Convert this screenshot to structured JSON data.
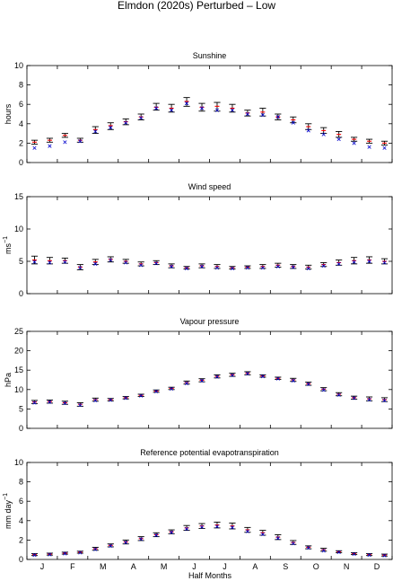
{
  "figure": {
    "title": "Elmdon (2020s) Perturbed – Low",
    "xlabel": "Half Months",
    "month_labels": [
      "J",
      "F",
      "M",
      "A",
      "M",
      "J",
      "J",
      "A",
      "S",
      "O",
      "N",
      "D"
    ],
    "colors": {
      "bar": "#000000",
      "mean": "#ff0000",
      "obs": "#0000cc",
      "frame": "#000000"
    }
  },
  "chart_data": [
    {
      "type": "errorbar",
      "title": "Sunshine",
      "ylabel": "hours",
      "ylabel_sup": "",
      "ylim": [
        0,
        10
      ],
      "yticks": [
        0,
        2,
        4,
        6,
        8,
        10
      ],
      "x": [
        1,
        2,
        3,
        4,
        5,
        6,
        7,
        8,
        9,
        10,
        11,
        12,
        13,
        14,
        15,
        16,
        17,
        18,
        19,
        20,
        21,
        22,
        23,
        24
      ],
      "mean": [
        2.1,
        2.3,
        2.8,
        2.3,
        3.4,
        3.8,
        4.2,
        4.7,
        5.7,
        5.6,
        6.3,
        5.7,
        5.8,
        5.6,
        5.1,
        5.2,
        4.7,
        4.4,
        3.7,
        3.3,
        2.9,
        2.4,
        2.2,
        2.0
      ],
      "lower": [
        1.9,
        2.1,
        2.6,
        2.1,
        3.0,
        3.4,
        3.9,
        4.4,
        5.4,
        5.2,
        5.8,
        5.3,
        5.3,
        5.2,
        4.8,
        4.8,
        4.4,
        4.1,
        3.4,
        3.0,
        2.6,
        2.2,
        2.0,
        1.8
      ],
      "upper": [
        2.3,
        2.5,
        3.0,
        2.5,
        3.7,
        4.1,
        4.5,
        5.0,
        6.1,
        6.0,
        6.7,
        6.1,
        6.2,
        6.0,
        5.4,
        5.6,
        5.0,
        4.7,
        4.0,
        3.6,
        3.2,
        2.6,
        2.4,
        2.2
      ],
      "observed": [
        1.5,
        1.7,
        2.1,
        2.2,
        3.2,
        3.6,
        4.1,
        4.6,
        5.6,
        5.4,
        6.1,
        5.6,
        5.4,
        5.4,
        5.0,
        4.9,
        4.7,
        4.1,
        3.3,
        2.9,
        2.4,
        2.0,
        1.6,
        1.5
      ]
    },
    {
      "type": "errorbar",
      "title": "Wind speed",
      "ylabel": "ms",
      "ylabel_sup": "−1",
      "ylim": [
        0,
        15
      ],
      "yticks": [
        0,
        5,
        10,
        15
      ],
      "x": [
        1,
        2,
        3,
        4,
        5,
        6,
        7,
        8,
        9,
        10,
        11,
        12,
        13,
        14,
        15,
        16,
        17,
        18,
        19,
        20,
        21,
        22,
        23,
        24
      ],
      "mean": [
        5.2,
        5.1,
        5.1,
        4.1,
        4.9,
        5.3,
        5.0,
        4.6,
        4.8,
        4.3,
        4.0,
        4.3,
        4.2,
        4.0,
        4.1,
        4.2,
        4.4,
        4.2,
        4.1,
        4.5,
        4.8,
        5.1,
        5.2,
        5.0
      ],
      "lower": [
        4.6,
        4.6,
        4.7,
        3.7,
        4.5,
        4.9,
        4.7,
        4.3,
        4.5,
        4.0,
        3.8,
        4.0,
        3.9,
        3.8,
        3.9,
        3.9,
        4.1,
        3.9,
        3.8,
        4.2,
        4.4,
        4.6,
        4.7,
        4.6
      ],
      "upper": [
        5.8,
        5.6,
        5.5,
        4.5,
        5.3,
        5.7,
        5.3,
        4.9,
        5.1,
        4.6,
        4.2,
        4.6,
        4.5,
        4.2,
        4.3,
        4.5,
        4.7,
        4.5,
        4.4,
        4.8,
        5.2,
        5.6,
        5.7,
        5.4
      ],
      "observed": [
        4.9,
        4.8,
        4.9,
        4.0,
        4.6,
        5.2,
        4.8,
        4.4,
        4.7,
        4.2,
        3.9,
        4.2,
        4.0,
        3.9,
        4.0,
        4.0,
        4.2,
        4.1,
        3.9,
        4.3,
        4.6,
        4.9,
        5.0,
        4.8
      ]
    },
    {
      "type": "errorbar",
      "title": "Vapour pressure",
      "ylabel": "hPa",
      "ylabel_sup": "",
      "ylim": [
        0,
        25
      ],
      "yticks": [
        0,
        5,
        10,
        15,
        20,
        25
      ],
      "x": [
        1,
        2,
        3,
        4,
        5,
        6,
        7,
        8,
        9,
        10,
        11,
        12,
        13,
        14,
        15,
        16,
        17,
        18,
        19,
        20,
        21,
        22,
        23,
        24
      ],
      "mean": [
        6.8,
        6.9,
        6.6,
        6.2,
        7.4,
        7.4,
        7.9,
        8.5,
        9.6,
        10.3,
        11.8,
        12.4,
        13.4,
        13.8,
        14.2,
        13.5,
        12.9,
        12.5,
        11.5,
        10.1,
        8.8,
        7.9,
        7.6,
        7.4
      ],
      "lower": [
        6.4,
        6.5,
        6.2,
        5.7,
        7.0,
        7.1,
        7.6,
        8.2,
        9.3,
        10.0,
        11.4,
        12.0,
        13.0,
        13.4,
        13.8,
        13.2,
        12.6,
        12.1,
        11.1,
        9.7,
        8.4,
        7.5,
        7.1,
        6.9
      ],
      "upper": [
        7.2,
        7.3,
        7.0,
        6.6,
        7.8,
        7.7,
        8.2,
        8.8,
        9.9,
        10.6,
        12.2,
        12.8,
        13.8,
        14.2,
        14.6,
        13.8,
        13.2,
        12.9,
        11.9,
        10.5,
        9.2,
        8.3,
        8.1,
        7.9
      ],
      "observed": [
        6.6,
        6.8,
        6.5,
        6.0,
        7.2,
        7.3,
        7.8,
        8.4,
        9.5,
        10.2,
        11.6,
        12.3,
        13.3,
        13.7,
        14.1,
        13.4,
        12.8,
        12.3,
        11.4,
        9.9,
        8.6,
        7.8,
        7.4,
        7.2
      ]
    },
    {
      "type": "errorbar",
      "title": "Reference potential evapotranspiration",
      "ylabel": "mm day",
      "ylabel_sup": "−1",
      "ylim": [
        0,
        10
      ],
      "yticks": [
        0,
        2,
        4,
        6,
        8,
        10
      ],
      "x": [
        1,
        2,
        3,
        4,
        5,
        6,
        7,
        8,
        9,
        10,
        11,
        12,
        13,
        14,
        15,
        16,
        17,
        18,
        19,
        20,
        21,
        22,
        23,
        24
      ],
      "mean": [
        0.5,
        0.55,
        0.65,
        0.75,
        1.1,
        1.45,
        1.8,
        2.15,
        2.55,
        2.85,
        3.25,
        3.45,
        3.55,
        3.45,
        3.05,
        2.75,
        2.3,
        1.75,
        1.25,
        1.0,
        0.8,
        0.6,
        0.5,
        0.45
      ],
      "lower": [
        0.4,
        0.45,
        0.55,
        0.65,
        0.95,
        1.3,
        1.6,
        1.95,
        2.35,
        2.65,
        3.0,
        3.2,
        3.25,
        3.15,
        2.8,
        2.5,
        2.05,
        1.55,
        1.1,
        0.85,
        0.7,
        0.5,
        0.4,
        0.35
      ],
      "upper": [
        0.6,
        0.65,
        0.75,
        0.85,
        1.25,
        1.6,
        2.0,
        2.35,
        2.75,
        3.05,
        3.5,
        3.7,
        3.85,
        3.75,
        3.3,
        3.0,
        2.55,
        1.95,
        1.4,
        1.15,
        0.9,
        0.7,
        0.6,
        0.55
      ],
      "observed": [
        0.45,
        0.5,
        0.6,
        0.7,
        1.05,
        1.4,
        1.75,
        2.1,
        2.5,
        2.8,
        3.15,
        3.35,
        3.4,
        3.3,
        2.9,
        2.6,
        2.2,
        1.65,
        1.2,
        0.9,
        0.75,
        0.55,
        0.45,
        0.4
      ]
    }
  ]
}
